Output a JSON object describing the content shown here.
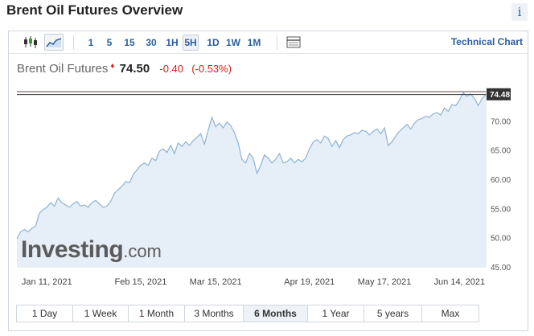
{
  "title": "Brent Oil Futures Overview",
  "info_label": "i",
  "toolbar": {
    "intervals": [
      "1",
      "5",
      "15",
      "30",
      "1H",
      "5H",
      "1D",
      "1W",
      "1M"
    ],
    "active_interval": "5H",
    "technical_chart": "Technical Chart",
    "icons": [
      "candlestick-icon",
      "line-chart-icon",
      "table-icon"
    ]
  },
  "quote": {
    "name": "Brent Oil Futures",
    "price": "74.50",
    "change": "-0.40",
    "change_pct": "(-0.53%)",
    "direction_color": "#e0261c"
  },
  "chart_data": {
    "type": "area",
    "line_color": "#8fb3d6",
    "fill_color": "#e6eef7",
    "ylim": [
      45,
      75
    ],
    "y_ticks": [
      "45.00",
      "50.00",
      "55.00",
      "60.00",
      "65.00",
      "70.00"
    ],
    "x_ticks": [
      "Jan 11, 2021",
      "Feb 15, 2021",
      "Mar 15, 2021",
      "Apr 19, 2021",
      "May 17, 2021",
      "Jun 14, 2021"
    ],
    "x_tick_positions": [
      8,
      33,
      53,
      78,
      98,
      118
    ],
    "x_range": [
      0,
      125
    ],
    "last_value_label": "74.48",
    "last_value": 74.48,
    "reference_lines": [
      75.0,
      74.5
    ],
    "x": [
      0,
      1,
      2,
      3,
      4,
      5,
      6,
      7,
      8,
      9,
      10,
      11,
      12,
      13,
      14,
      15,
      16,
      17,
      18,
      19,
      20,
      21,
      22,
      23,
      24,
      25,
      26,
      27,
      28,
      29,
      30,
      31,
      32,
      33,
      34,
      35,
      36,
      37,
      38,
      39,
      40,
      41,
      42,
      43,
      44,
      45,
      46,
      47,
      48,
      49,
      50,
      51,
      52,
      53,
      54,
      55,
      56,
      57,
      58,
      59,
      60,
      61,
      62,
      63,
      64,
      65,
      66,
      67,
      68,
      69,
      70,
      71,
      72,
      73,
      74,
      75,
      76,
      77,
      78,
      79,
      80,
      81,
      82,
      83,
      84,
      85,
      86,
      87,
      88,
      89,
      90,
      91,
      92,
      93,
      94,
      95,
      96,
      97,
      98,
      99,
      100,
      101,
      102,
      103,
      104,
      105,
      106,
      107,
      108,
      109,
      110,
      111,
      112,
      113,
      114,
      115,
      116,
      117,
      118,
      119,
      120,
      121,
      122,
      123,
      124,
      125
    ],
    "values": [
      49.8,
      51.0,
      51.4,
      51.0,
      51.6,
      52.0,
      54.2,
      54.8,
      55.2,
      56.0,
      55.4,
      56.8,
      56.0,
      55.6,
      55.2,
      55.8,
      56.2,
      55.4,
      55.6,
      55.2,
      56.0,
      56.4,
      55.8,
      55.2,
      55.4,
      56.2,
      57.6,
      58.2,
      58.8,
      59.6,
      59.4,
      60.8,
      61.6,
      62.4,
      62.8,
      62.4,
      63.6,
      63.2,
      64.8,
      65.2,
      64.6,
      65.8,
      64.4,
      66.2,
      65.6,
      66.4,
      65.8,
      66.6,
      67.2,
      67.8,
      66.0,
      68.4,
      70.6,
      69.0,
      69.6,
      68.8,
      69.8,
      69.2,
      68.0,
      66.2,
      63.4,
      62.8,
      64.4,
      63.6,
      61.0,
      62.4,
      64.2,
      63.6,
      62.8,
      63.4,
      64.4,
      62.8,
      63.0,
      63.6,
      62.8,
      63.4,
      63.0,
      63.6,
      65.2,
      66.4,
      66.8,
      66.2,
      67.4,
      67.0,
      65.6,
      66.6,
      65.4,
      66.8,
      67.4,
      67.6,
      68.0,
      67.8,
      68.4,
      68.2,
      67.6,
      68.2,
      68.6,
      67.8,
      68.8,
      65.8,
      66.4,
      67.4,
      68.2,
      68.8,
      69.4,
      68.6,
      69.6,
      70.2,
      70.4,
      70.8,
      70.6,
      71.2,
      71.4,
      71.0,
      72.2,
      71.6,
      72.8,
      72.6,
      73.6,
      74.8,
      74.2,
      74.6,
      73.8,
      72.6,
      73.8,
      74.48
    ]
  },
  "watermark": {
    "brand": "Investing",
    "suffix": ".com"
  },
  "ranges": {
    "items": [
      "1 Day",
      "1 Week",
      "1 Month",
      "3 Months",
      "6 Months",
      "1 Year",
      "5 years",
      "Max"
    ],
    "active": "6 Months"
  }
}
